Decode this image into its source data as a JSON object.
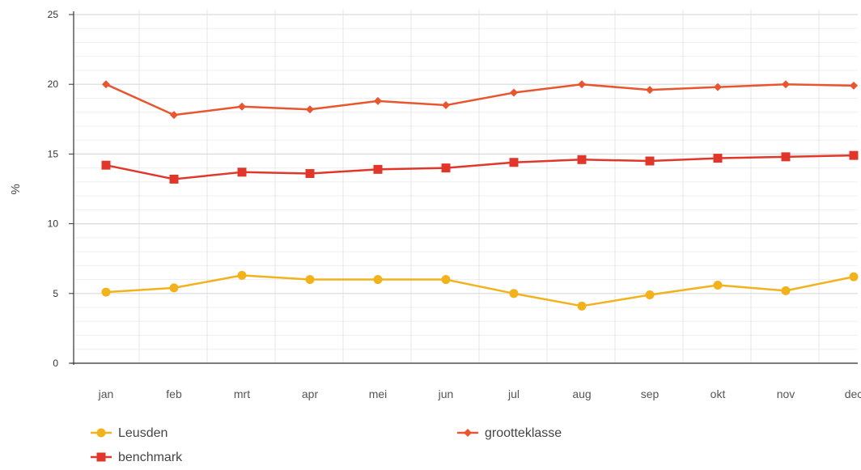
{
  "chart_data": {
    "type": "line",
    "title": "",
    "xlabel": "",
    "ylabel": "%",
    "ylim": [
      0,
      25
    ],
    "yticks": [
      "0",
      "5",
      "10",
      "15",
      "20",
      "25"
    ],
    "categories": [
      "jan",
      "feb",
      "mrt",
      "apr",
      "mei",
      "jun",
      "jul",
      "aug",
      "sep",
      "okt",
      "nov",
      "dec"
    ],
    "grid": true,
    "legend_position": "bottom",
    "series": [
      {
        "name": "Leusden",
        "color": "#f2b21c",
        "marker": "circle",
        "values": [
          5.1,
          5.4,
          6.3,
          6.0,
          6.0,
          6.0,
          5.0,
          4.1,
          4.9,
          5.6,
          5.2,
          6.2
        ]
      },
      {
        "name": "benchmark",
        "color": "#e0372a",
        "marker": "square",
        "values": [
          14.2,
          13.2,
          13.7,
          13.6,
          13.9,
          14.0,
          14.4,
          14.6,
          14.5,
          14.7,
          14.8,
          14.9
        ]
      },
      {
        "name": "grootteklasse",
        "color": "#e8552f",
        "marker": "diamond",
        "values": [
          20.0,
          17.8,
          18.4,
          18.2,
          18.8,
          18.5,
          19.4,
          20.0,
          19.6,
          19.8,
          20.0,
          19.9
        ]
      }
    ]
  }
}
